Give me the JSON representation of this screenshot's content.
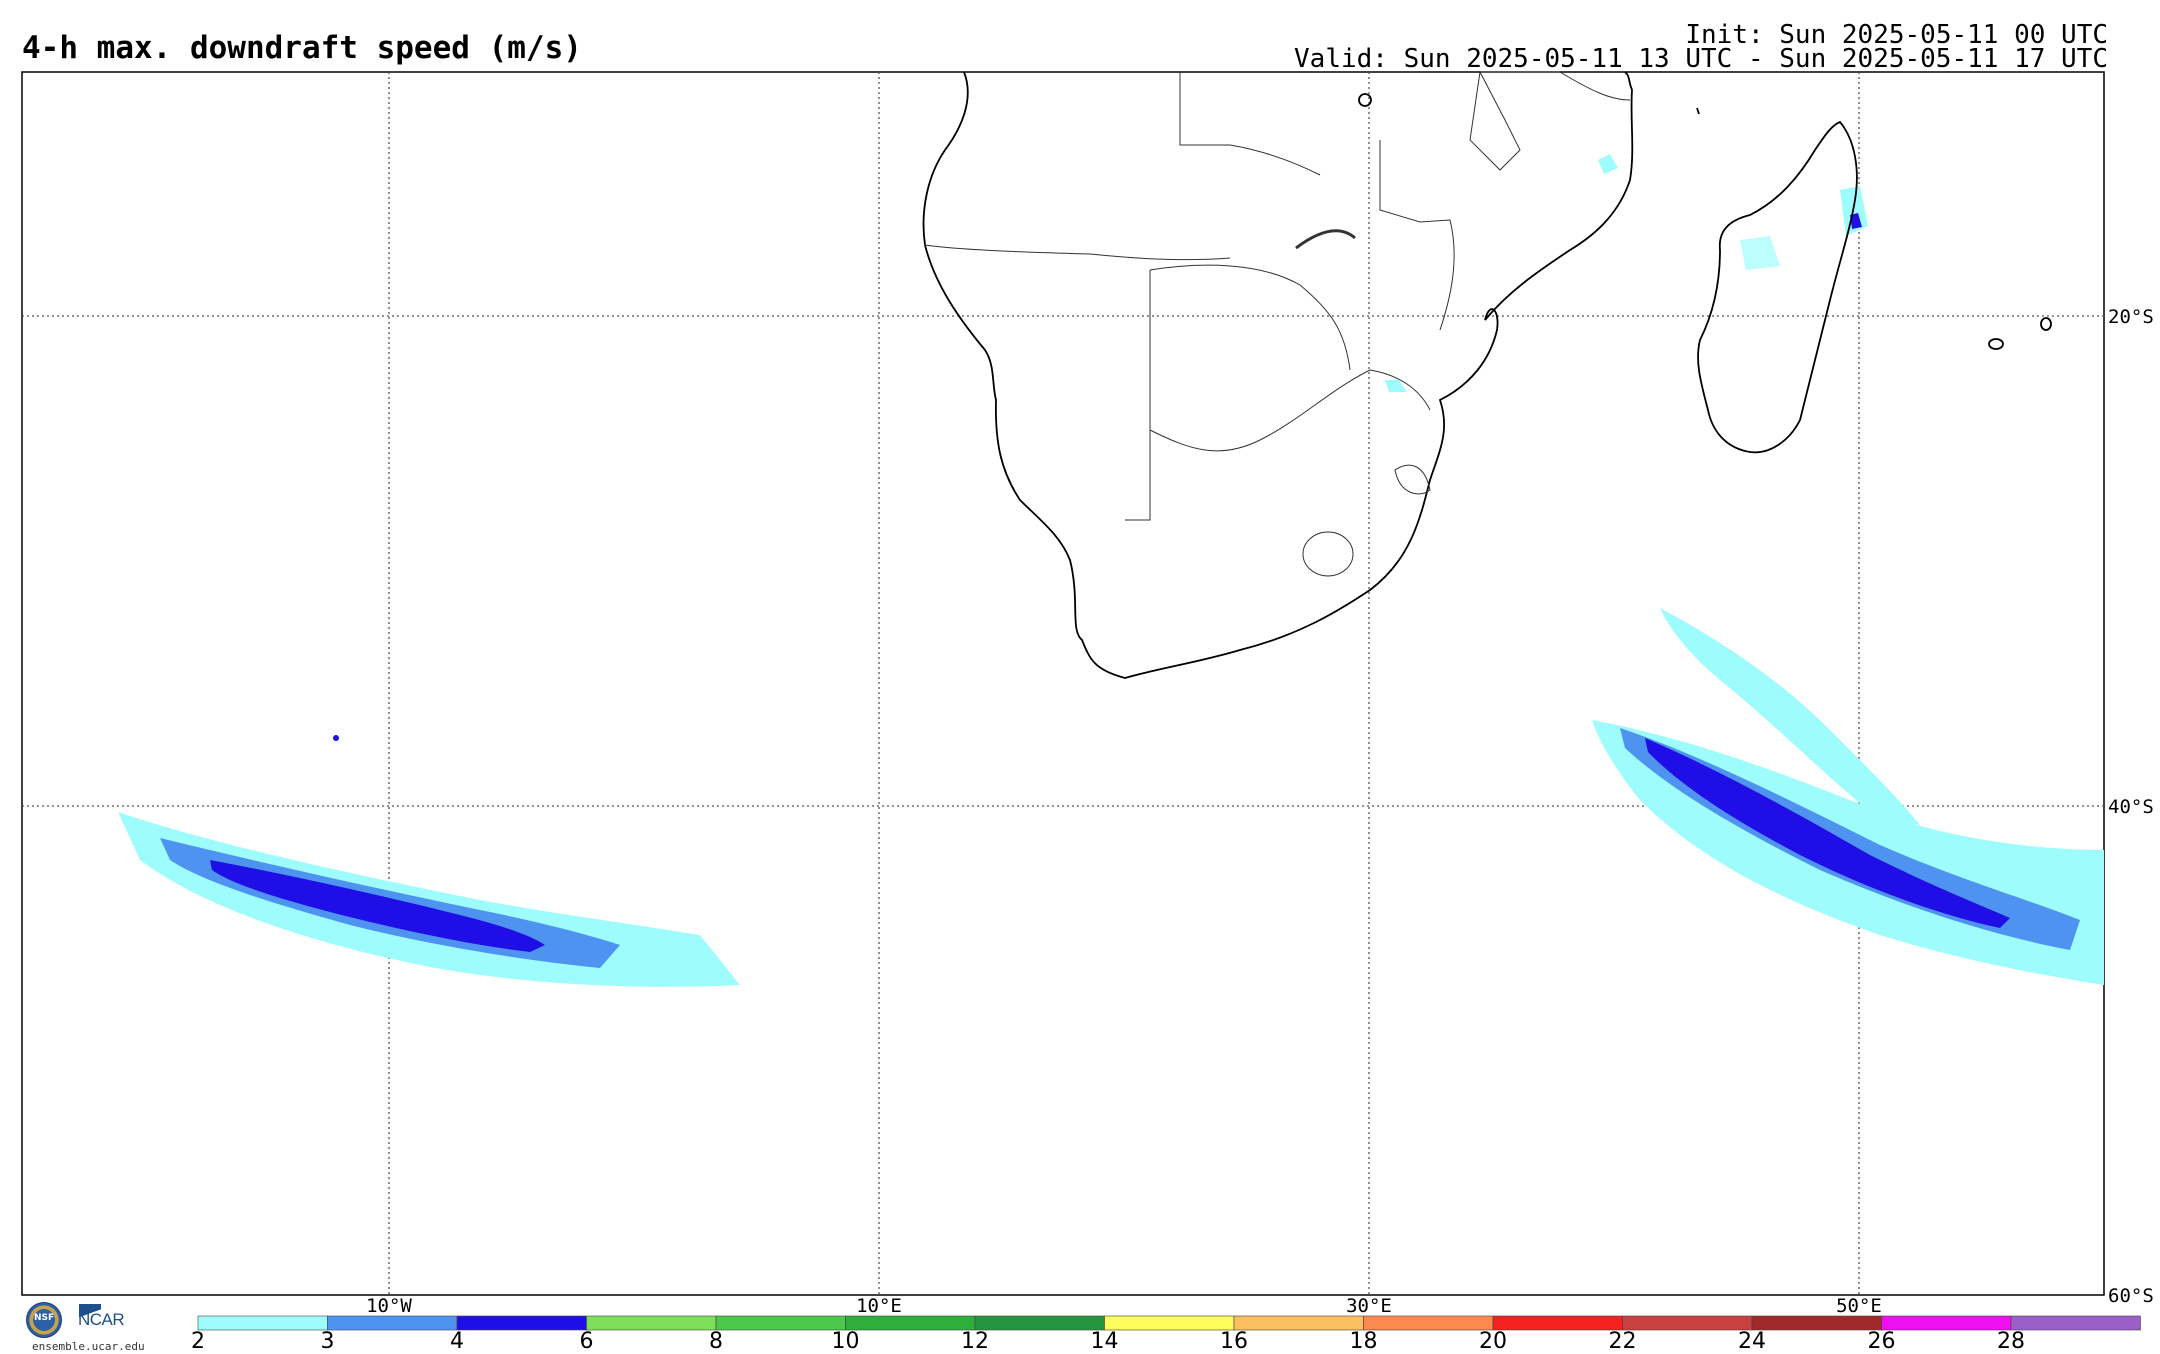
{
  "header": {
    "title": "4-h max. downdraft speed (m/s)",
    "init": "Init: Sun 2025-05-11 00 UTC",
    "valid": "Valid: Sun 2025-05-11 13 UTC - Sun 2025-05-11 17 UTC"
  },
  "map": {
    "lat_labels": [
      "20°S",
      "40°S",
      "60°S"
    ],
    "lon_labels": [
      "10°W",
      "10°E",
      "30°E",
      "50°E"
    ]
  },
  "colorbar": {
    "ticks": [
      "2",
      "3",
      "4",
      "6",
      "8",
      "10",
      "12",
      "14",
      "16",
      "18",
      "20",
      "22",
      "24",
      "26",
      "28"
    ],
    "colors": [
      "#9ffcfc",
      "#4f93f0",
      "#1f0fe6",
      "#7ee05a",
      "#4cc94a",
      "#2fae3c",
      "#279442",
      "#fcfc5a",
      "#fcc061",
      "#fc8a50",
      "#f52020",
      "#c84040",
      "#a02a2a",
      "#ee10ee",
      "#9a60c8"
    ]
  },
  "footer": {
    "site": "ensemble.ucar.edu",
    "logo_text": "NCAR",
    "nsf_text": "NSF"
  }
}
